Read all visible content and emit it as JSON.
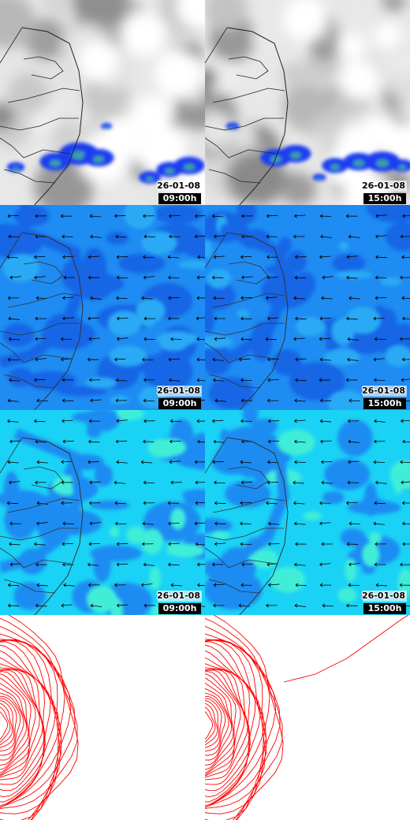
{
  "panels": [
    {
      "date": "26-01-08",
      "time": "09:00h"
    },
    {
      "date": "26-01-08",
      "time": "15:00h"
    },
    {
      "date": "26-01-08",
      "time": "09:00h"
    },
    {
      "date": "26-01-08",
      "time": "15:00h"
    },
    {
      "date": "26-01-08",
      "time": "09:00h"
    },
    {
      "date": "26-01-08",
      "time": "15:00h"
    }
  ]
}
